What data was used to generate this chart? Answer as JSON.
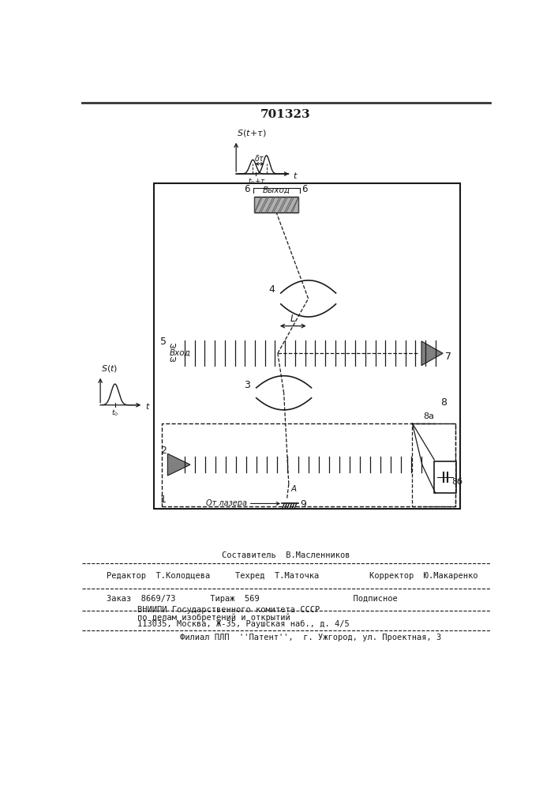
{
  "patent_number": "701323",
  "bg": "#ffffff",
  "lc": "#1a1a1a",
  "footer_sestavitel": "Составитель  В.Масленников",
  "footer_redaktor": "Редактор  Т.Колодцева",
  "footer_tehred": "Техред  Т.Маточка",
  "footer_korrektor": "Корректор  Ю.Макаренко",
  "footer_zakaz": "Заказ  8669/73       Тираж  569                   Подписное",
  "footer_vniip1": "ВНИИПИ Государственного комитета СССР",
  "footer_vniip2": "по делам изобретений и открытий",
  "footer_addr": "113035, Москва, Ж-35, Раушская наб., д. 4/5",
  "footer_filial": "Филиал ПЛП  ''Патент'',  г. Ужгород, ул. Проектная, 3"
}
